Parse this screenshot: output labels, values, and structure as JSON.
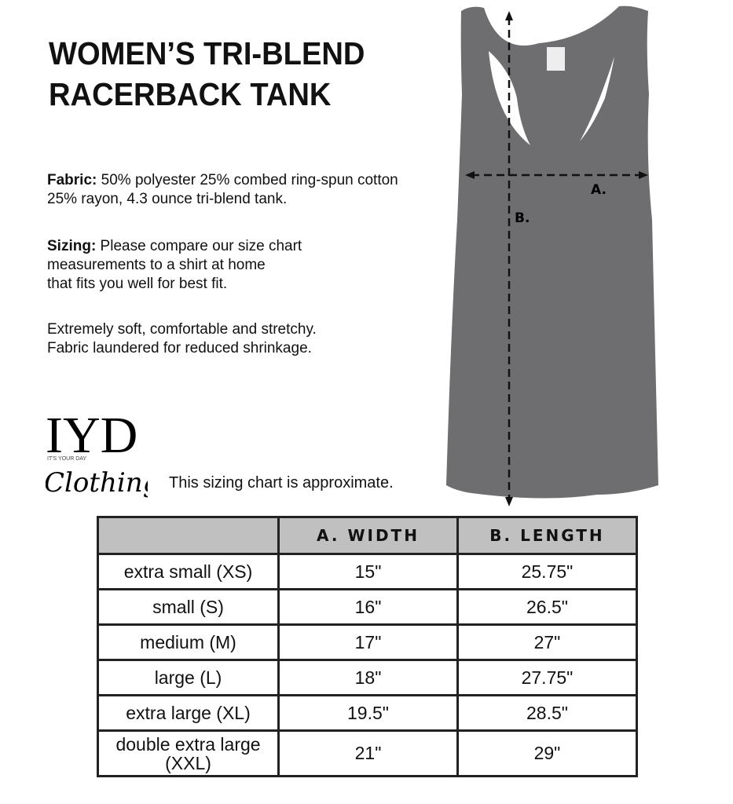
{
  "title_line1": "WOMEN’S TRI-BLEND",
  "title_line2": "RACERBACK TANK",
  "fabric_label": "Fabric:",
  "fabric_text1": " 50% polyester 25% combed ring-spun cotton",
  "fabric_text2": "25% rayon, 4.3 ounce tri-blend tank.",
  "sizing_label": "Sizing:",
  "sizing_text1": " Please compare our size chart",
  "sizing_text2": "measurements to a shirt at home",
  "sizing_text3": "that fits you well for best fit.",
  "soft_text1": "Extremely soft, comfortable and stretchy.",
  "soft_text2": "Fabric laundered for reduced shrinkage.",
  "logo": {
    "main": "IYD",
    "sub": "IT'S YOUR DAY",
    "script": "Clothing"
  },
  "approx_note": "This sizing chart is approximate.",
  "diagram": {
    "width_label": "A.",
    "length_label": "B.",
    "tank_color": "#6e6e70"
  },
  "table": {
    "headers": [
      "",
      "A. WIDTH",
      "B. LENGTH"
    ],
    "rows": [
      {
        "size": "extra small (XS)",
        "width": "15\"",
        "length": "25.75\""
      },
      {
        "size": "small (S)",
        "width": "16\"",
        "length": "26.5\""
      },
      {
        "size": "medium (M)",
        "width": "17\"",
        "length": "27\""
      },
      {
        "size": "large (L)",
        "width": "18\"",
        "length": "27.75\""
      },
      {
        "size": "extra large (XL)",
        "width": "19.5\"",
        "length": "28.5\""
      },
      {
        "size": "double extra large (XXL)",
        "width": "21\"",
        "length": "29\""
      }
    ]
  }
}
